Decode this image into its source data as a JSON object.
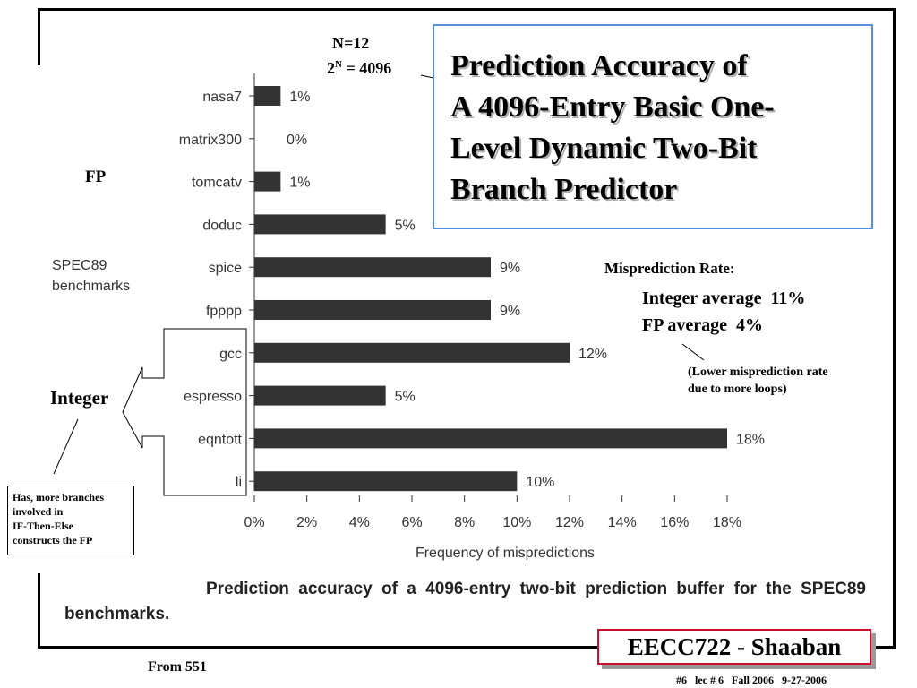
{
  "chart_data": {
    "type": "bar",
    "orientation": "horizontal",
    "categories": [
      "nasa7",
      "matrix300",
      "tomcatv",
      "doduc",
      "spice",
      "fpppp",
      "gcc",
      "espresso",
      "eqntott",
      "li"
    ],
    "values": [
      1,
      0,
      1,
      5,
      9,
      9,
      12,
      5,
      18,
      10
    ],
    "value_labels": [
      "1%",
      "0%",
      "1%",
      "5%",
      "9%",
      "9%",
      "12%",
      "5%",
      "18%",
      "10%"
    ],
    "xlim": [
      0,
      18
    ],
    "x_ticks": [
      "0%",
      "2%",
      "4%",
      "6%",
      "8%",
      "10%",
      "12%",
      "14%",
      "16%",
      "18%"
    ],
    "xlabel": "Frequency of mispredictions",
    "side_label": [
      "SPEC89",
      "benchmarks"
    ],
    "bar_color": "#333333"
  },
  "title": {
    "lines": [
      "Prediction Accuracy of",
      "A 4096-Entry Basic One-",
      "Level Dynamic Two-Bit",
      "Branch Predictor"
    ]
  },
  "annotations": {
    "n_value": "N=12",
    "two_base": "2",
    "two_exp": "N",
    "two_rest": " = 4096",
    "fp_group": "FP",
    "integer_group": "Integer",
    "note_lines": [
      "Has, more branches",
      "involved in",
      "IF-Then-Else",
      "constructs the FP"
    ]
  },
  "misprediction": {
    "title": "Misprediction Rate:",
    "integer": "Integer average  11%",
    "fp": "FP average  4%",
    "note_lines": [
      "(Lower misprediction rate",
      "due to more loops)"
    ]
  },
  "caption": {
    "text": "Prediction accuracy of a 4096-entry two-bit prediction buffer for the SPEC89 benchmarks."
  },
  "footer": {
    "source": "From 551",
    "course": "EECC722 - Shaaban",
    "slide_info": "#6   lec # 6   Fall 2006   9-27-2006"
  },
  "colors": {
    "title_border": "#5b8ed9",
    "course_border": "#c8102e",
    "bars": "#333333"
  }
}
